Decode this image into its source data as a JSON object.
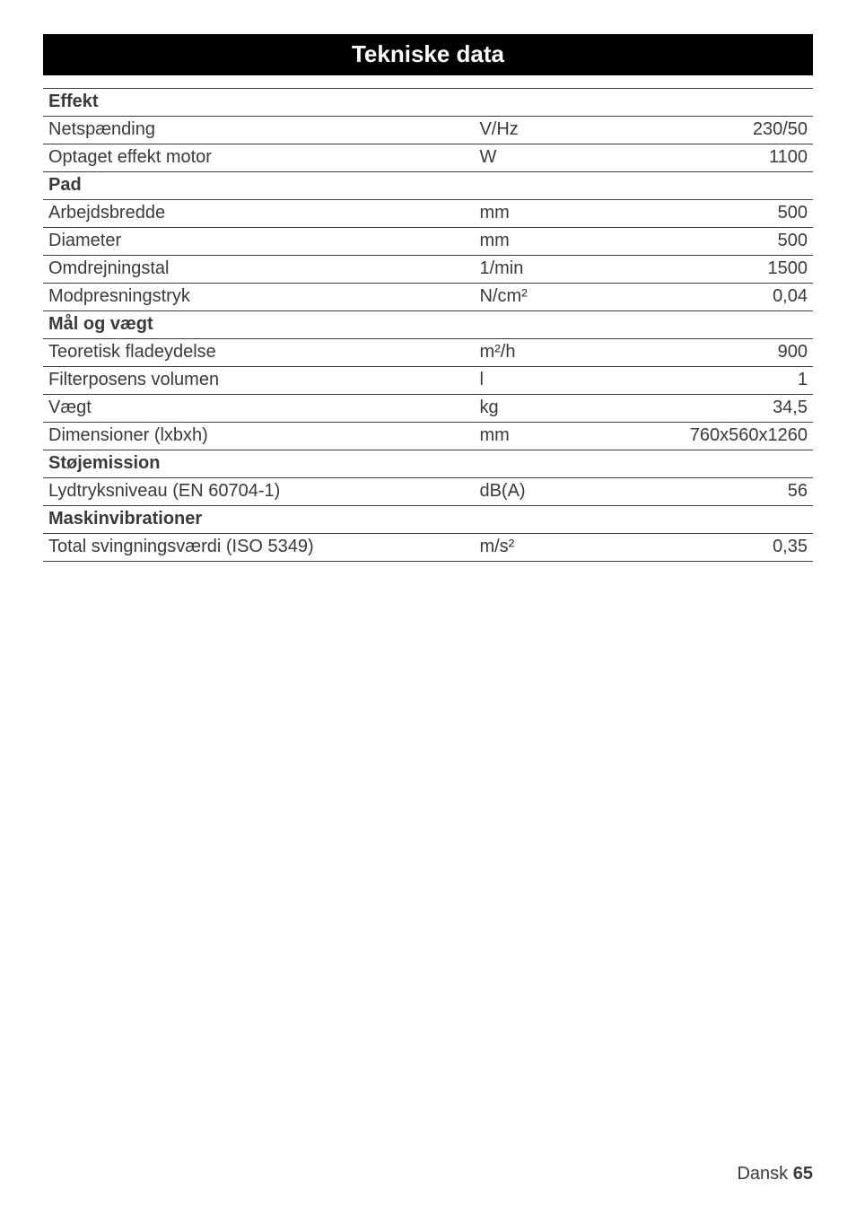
{
  "banner_title": "Tekniske data",
  "sections": {
    "effekt": "Effekt",
    "pad": "Pad",
    "maal": "Mål og vægt",
    "stoj": "Støjemission",
    "vib": "Maskinvibrationer"
  },
  "rows": {
    "netspaending": {
      "label": "Netspænding",
      "unit": "V/Hz",
      "value": "230/50"
    },
    "optaget": {
      "label": "Optaget effekt motor",
      "unit": "W",
      "value": "1100"
    },
    "arbejdsbredde": {
      "label": "Arbejdsbredde",
      "unit": "mm",
      "value": "500"
    },
    "diameter": {
      "label": "Diameter",
      "unit": "mm",
      "value": "500"
    },
    "omdrejning": {
      "label": "Omdrejningstal",
      "unit": "1/min",
      "value": "1500"
    },
    "modpres": {
      "label": "Modpresningstryk",
      "unit": "N/cm²",
      "value": "0,04"
    },
    "teoretisk": {
      "label": "Teoretisk fladeydelse",
      "unit": "m²/h",
      "value": "900"
    },
    "filterposens": {
      "label": "Filterposens volumen",
      "unit": "l",
      "value": "1"
    },
    "vaegt": {
      "label": "Vægt",
      "unit": "kg",
      "value": "34,5"
    },
    "dimensioner": {
      "label": "Dimensioner (lxbxh)",
      "unit": "mm",
      "value": "760x560x1260"
    },
    "lydtryk": {
      "label": "Lydtryksniveau (EN 60704-1)",
      "unit": "dB(A)",
      "value": "56"
    },
    "totalsving": {
      "label": "Total svingningsværdi (ISO 5349)",
      "unit": "m/s²",
      "value": "0,35"
    }
  },
  "footer": {
    "lang": "Dansk",
    "page": "65"
  },
  "colors": {
    "banner_bg": "#000000",
    "banner_fg": "#ffffff",
    "text": "#3a3a3a",
    "rule": "#3a3a3a",
    "page_bg": "#ffffff"
  },
  "typography": {
    "banner_fontsize": 26,
    "body_fontsize": 20,
    "footer_fontsize": 20
  }
}
